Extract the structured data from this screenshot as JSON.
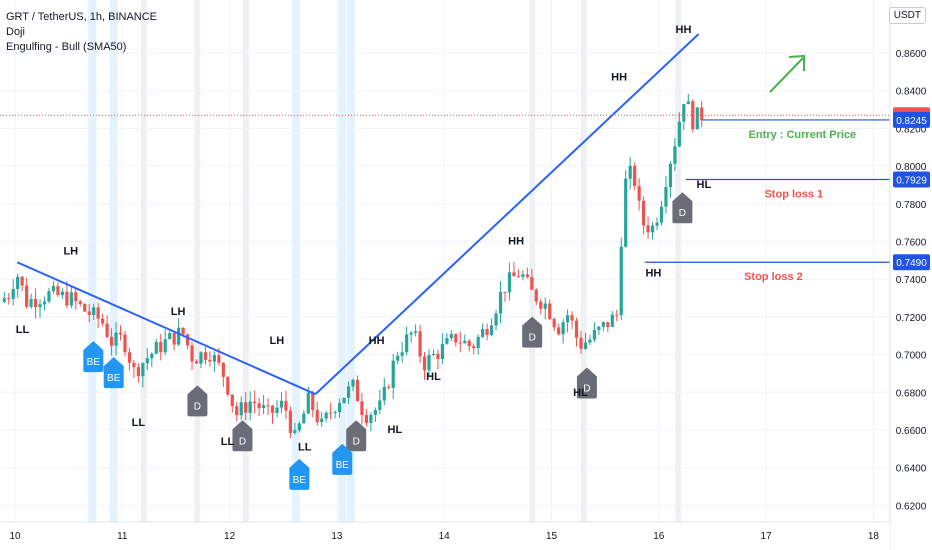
{
  "chart_data": {
    "type": "candlestick",
    "title": "GRT / TetherUS, 1h, BINANCE",
    "symbol": "GRT / TetherUS",
    "interval": "1h",
    "exchange": "BINANCE",
    "indicators": [
      "Doji",
      "Engulfing - Bull (SMA50)"
    ],
    "currency": "USDT",
    "ylim": [
      0.61,
      0.875
    ],
    "y_ticks": [
      "0.8600",
      "0.8400",
      "0.8200",
      "0.8000",
      "0.7800",
      "0.7600",
      "0.7400",
      "0.7200",
      "0.7000",
      "0.6800",
      "0.6600",
      "0.6400",
      "0.6200"
    ],
    "x_ticks": [
      "10",
      "11",
      "12",
      "13",
      "14",
      "15",
      "16",
      "17",
      "18"
    ],
    "price_path": [
      {
        "day": 9.9,
        "price": 0.728
      },
      {
        "day": 10.0,
        "price": 0.733
      },
      {
        "day": 10.05,
        "price": 0.745
      },
      {
        "day": 10.15,
        "price": 0.728
      },
      {
        "day": 10.35,
        "price": 0.732
      },
      {
        "day": 10.55,
        "price": 0.73
      },
      {
        "day": 10.7,
        "price": 0.723
      },
      {
        "day": 10.85,
        "price": 0.718
      },
      {
        "day": 10.95,
        "price": 0.706
      },
      {
        "day": 11.05,
        "price": 0.709
      },
      {
        "day": 11.15,
        "price": 0.691
      },
      {
        "day": 11.3,
        "price": 0.7
      },
      {
        "day": 11.45,
        "price": 0.707
      },
      {
        "day": 11.6,
        "price": 0.712
      },
      {
        "day": 11.7,
        "price": 0.698
      },
      {
        "day": 11.85,
        "price": 0.702
      },
      {
        "day": 12.0,
        "price": 0.688
      },
      {
        "day": 12.1,
        "price": 0.668
      },
      {
        "day": 12.25,
        "price": 0.676
      },
      {
        "day": 12.4,
        "price": 0.668
      },
      {
        "day": 12.55,
        "price": 0.674
      },
      {
        "day": 12.65,
        "price": 0.655
      },
      {
        "day": 12.78,
        "price": 0.676
      },
      {
        "day": 12.9,
        "price": 0.662
      },
      {
        "day": 13.05,
        "price": 0.676
      },
      {
        "day": 13.2,
        "price": 0.683
      },
      {
        "day": 13.3,
        "price": 0.668
      },
      {
        "day": 13.45,
        "price": 0.672
      },
      {
        "day": 13.6,
        "price": 0.701
      },
      {
        "day": 13.75,
        "price": 0.712
      },
      {
        "day": 13.85,
        "price": 0.695
      },
      {
        "day": 14.0,
        "price": 0.702
      },
      {
        "day": 14.15,
        "price": 0.709
      },
      {
        "day": 14.3,
        "price": 0.704
      },
      {
        "day": 14.45,
        "price": 0.716
      },
      {
        "day": 14.6,
        "price": 0.736
      },
      {
        "day": 14.75,
        "price": 0.744
      },
      {
        "day": 14.85,
        "price": 0.733
      },
      {
        "day": 15.0,
        "price": 0.726
      },
      {
        "day": 15.1,
        "price": 0.714
      },
      {
        "day": 15.2,
        "price": 0.722
      },
      {
        "day": 15.3,
        "price": 0.705
      },
      {
        "day": 15.4,
        "price": 0.708
      },
      {
        "day": 15.55,
        "price": 0.716
      },
      {
        "day": 15.65,
        "price": 0.721
      },
      {
        "day": 15.72,
        "price": 0.79
      },
      {
        "day": 15.8,
        "price": 0.798
      },
      {
        "day": 15.88,
        "price": 0.77
      },
      {
        "day": 15.98,
        "price": 0.767
      },
      {
        "day": 16.05,
        "price": 0.778
      },
      {
        "day": 16.12,
        "price": 0.797
      },
      {
        "day": 16.2,
        "price": 0.815
      },
      {
        "day": 16.28,
        "price": 0.838
      },
      {
        "day": 16.35,
        "price": 0.824
      },
      {
        "day": 16.42,
        "price": 0.827
      }
    ],
    "current_price_label": "0.8270",
    "trendlines": [
      {
        "from": {
          "day": 10.02,
          "price": 0.749
        },
        "to": {
          "day": 12.8,
          "price": 0.679
        }
      },
      {
        "from": {
          "day": 12.8,
          "price": 0.679
        },
        "to": {
          "day": 16.37,
          "price": 0.87
        }
      }
    ],
    "levels": [
      {
        "price": 0.8245,
        "label": "Entry : Current Price",
        "tag": "0.8245",
        "start_day": 16.41,
        "label_color": "#4caf50"
      },
      {
        "price": 0.7929,
        "label": "Stop loss 1",
        "tag": "0.7929",
        "start_day": 16.25,
        "label_color": "#ef5350"
      },
      {
        "price": 0.749,
        "label": "Stop loss 2",
        "tag": "0.7490",
        "start_day": 15.87,
        "label_color": "#ef5350"
      }
    ],
    "swing_labels": [
      {
        "text": "LH",
        "day": 10.52,
        "price": 0.753
      },
      {
        "text": "LL",
        "day": 10.07,
        "price": 0.7115
      },
      {
        "text": "LH",
        "day": 11.52,
        "price": 0.721
      },
      {
        "text": "LL",
        "day": 11.15,
        "price": 0.662
      },
      {
        "text": "LH",
        "day": 12.44,
        "price": 0.7055
      },
      {
        "text": "LL",
        "day": 11.98,
        "price": 0.652
      },
      {
        "text": "LL",
        "day": 12.7,
        "price": 0.649
      },
      {
        "text": "HH",
        "day": 13.37,
        "price": 0.7055
      },
      {
        "text": "HL",
        "day": 13.54,
        "price": 0.6585
      },
      {
        "text": "HL",
        "day": 13.9,
        "price": 0.6865
      },
      {
        "text": "HH",
        "day": 14.67,
        "price": 0.7585
      },
      {
        "text": "HL",
        "day": 15.27,
        "price": 0.678
      },
      {
        "text": "HH",
        "day": 15.63,
        "price": 0.8455
      },
      {
        "text": "HH",
        "day": 15.95,
        "price": 0.7415
      },
      {
        "text": "HH",
        "day": 16.23,
        "price": 0.8705
      },
      {
        "text": "HL",
        "day": 16.42,
        "price": 0.7885
      }
    ],
    "markers": [
      {
        "text": "BE",
        "type": "engulfing-bull",
        "day": 10.73,
        "price": 0.7045
      },
      {
        "text": "BE",
        "type": "engulfing-bull",
        "day": 10.92,
        "price": 0.696
      },
      {
        "text": "D",
        "type": "doji",
        "day": 11.7,
        "price": 0.681
      },
      {
        "text": "D",
        "type": "doji",
        "day": 12.12,
        "price": 0.6625
      },
      {
        "text": "BE",
        "type": "engulfing-bull",
        "day": 12.65,
        "price": 0.642
      },
      {
        "text": "D",
        "type": "doji",
        "day": 13.18,
        "price": 0.6625
      },
      {
        "text": "BE",
        "type": "engulfing-bull",
        "day": 13.05,
        "price": 0.65
      },
      {
        "text": "D",
        "type": "doji",
        "day": 14.82,
        "price": 0.7175
      },
      {
        "text": "D",
        "type": "doji",
        "day": 15.33,
        "price": 0.6905
      },
      {
        "text": "D",
        "type": "doji",
        "day": 16.22,
        "price": 0.7835
      }
    ],
    "highlight_days": [
      10.72,
      10.92,
      12.62,
      13.05,
      13.13
    ],
    "grey_days": [
      11.2,
      11.7,
      12.15,
      14.82,
      15.3,
      16.18
    ],
    "arrow_color": "#4caf50",
    "colors": {
      "up": "#26a69a",
      "down": "#ef5350",
      "trend": "#2962ff",
      "level": "#1e53e5",
      "doji_marker": "#6a6d78",
      "be_marker": "#2196f3",
      "current_tag": "#ef5350",
      "highlight": "#e3f2fd",
      "grey_band": "#eef0f3"
    }
  }
}
